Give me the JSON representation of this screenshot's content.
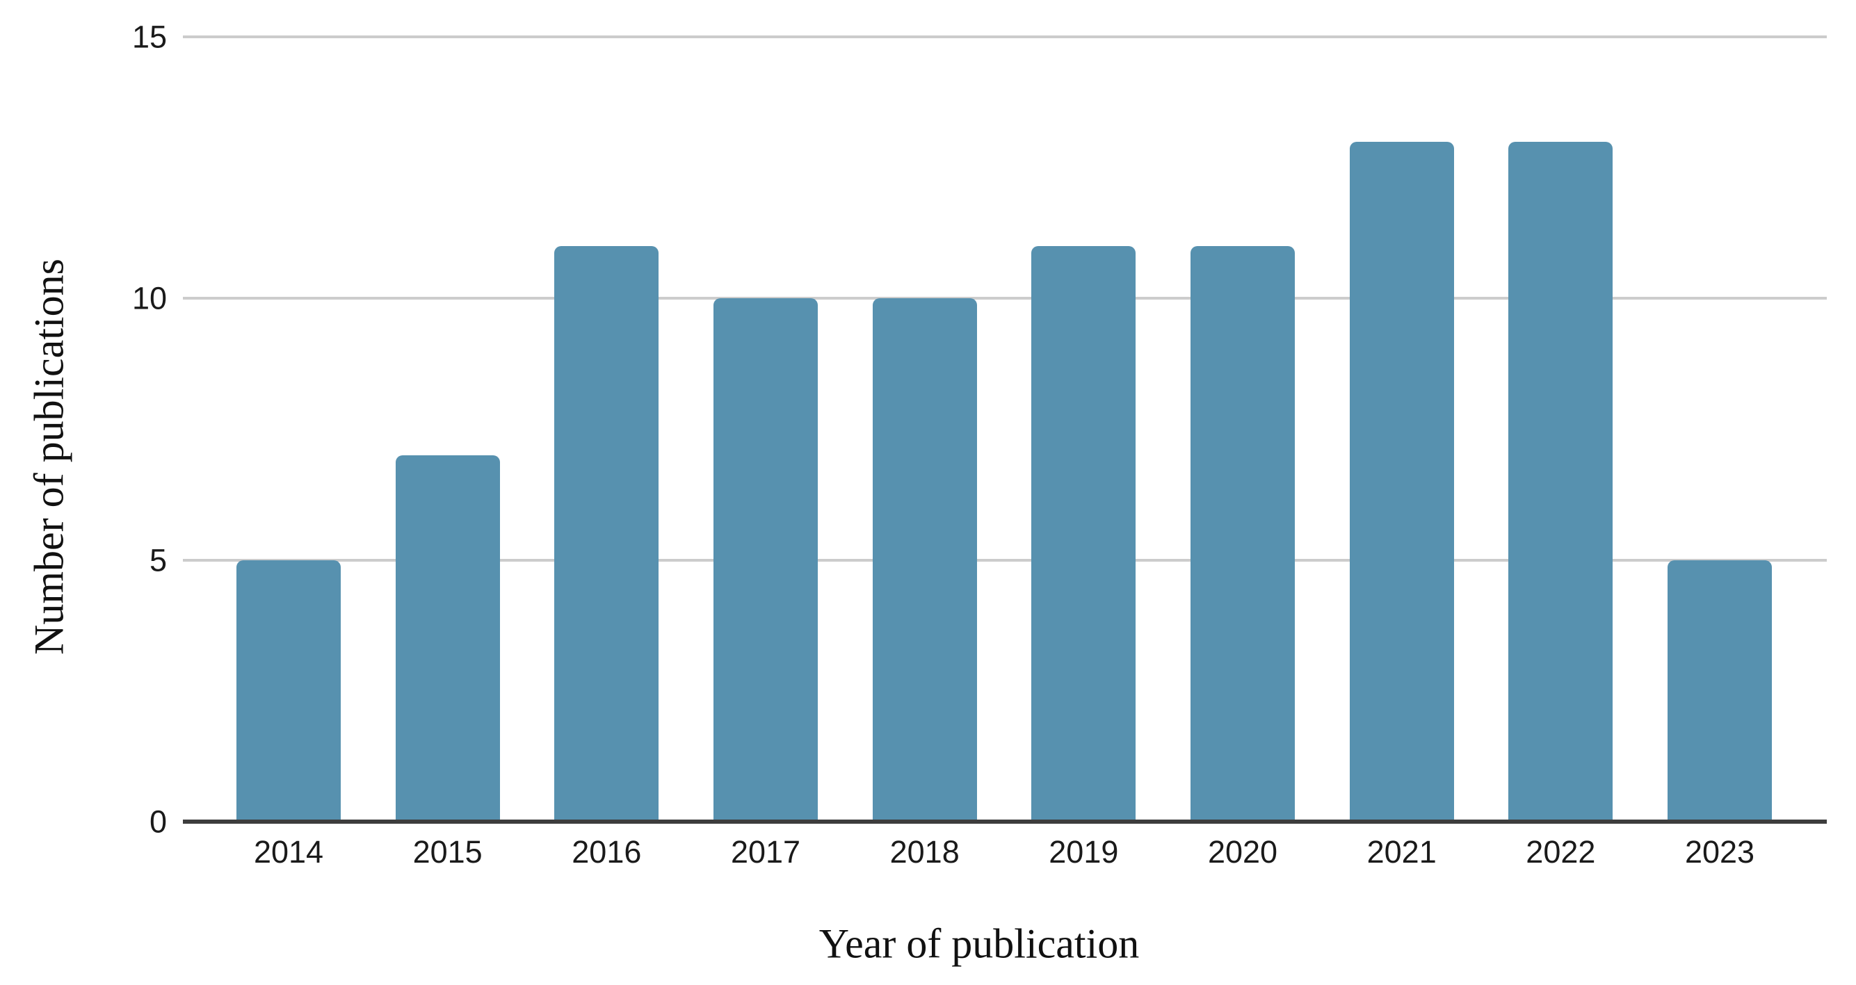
{
  "chart_data": {
    "type": "bar",
    "categories": [
      "2014",
      "2015",
      "2016",
      "2017",
      "2018",
      "2019",
      "2020",
      "2021",
      "2022",
      "2023"
    ],
    "values": [
      5,
      7,
      11,
      10,
      10,
      11,
      11,
      13,
      13,
      5
    ],
    "title": "",
    "xlabel": "Year of publication",
    "ylabel": "Number of publications",
    "ylim": [
      0,
      15
    ],
    "yticks": [
      0,
      5,
      10,
      15
    ],
    "grid": true,
    "legend_position": "none",
    "colors": {
      "bar": "#5791af",
      "gridline": "#cccccc",
      "axis_line": "#3d3d3d",
      "tick_text": "#1a1a1a",
      "title_text": "#111111",
      "background": "#ffffff"
    }
  }
}
